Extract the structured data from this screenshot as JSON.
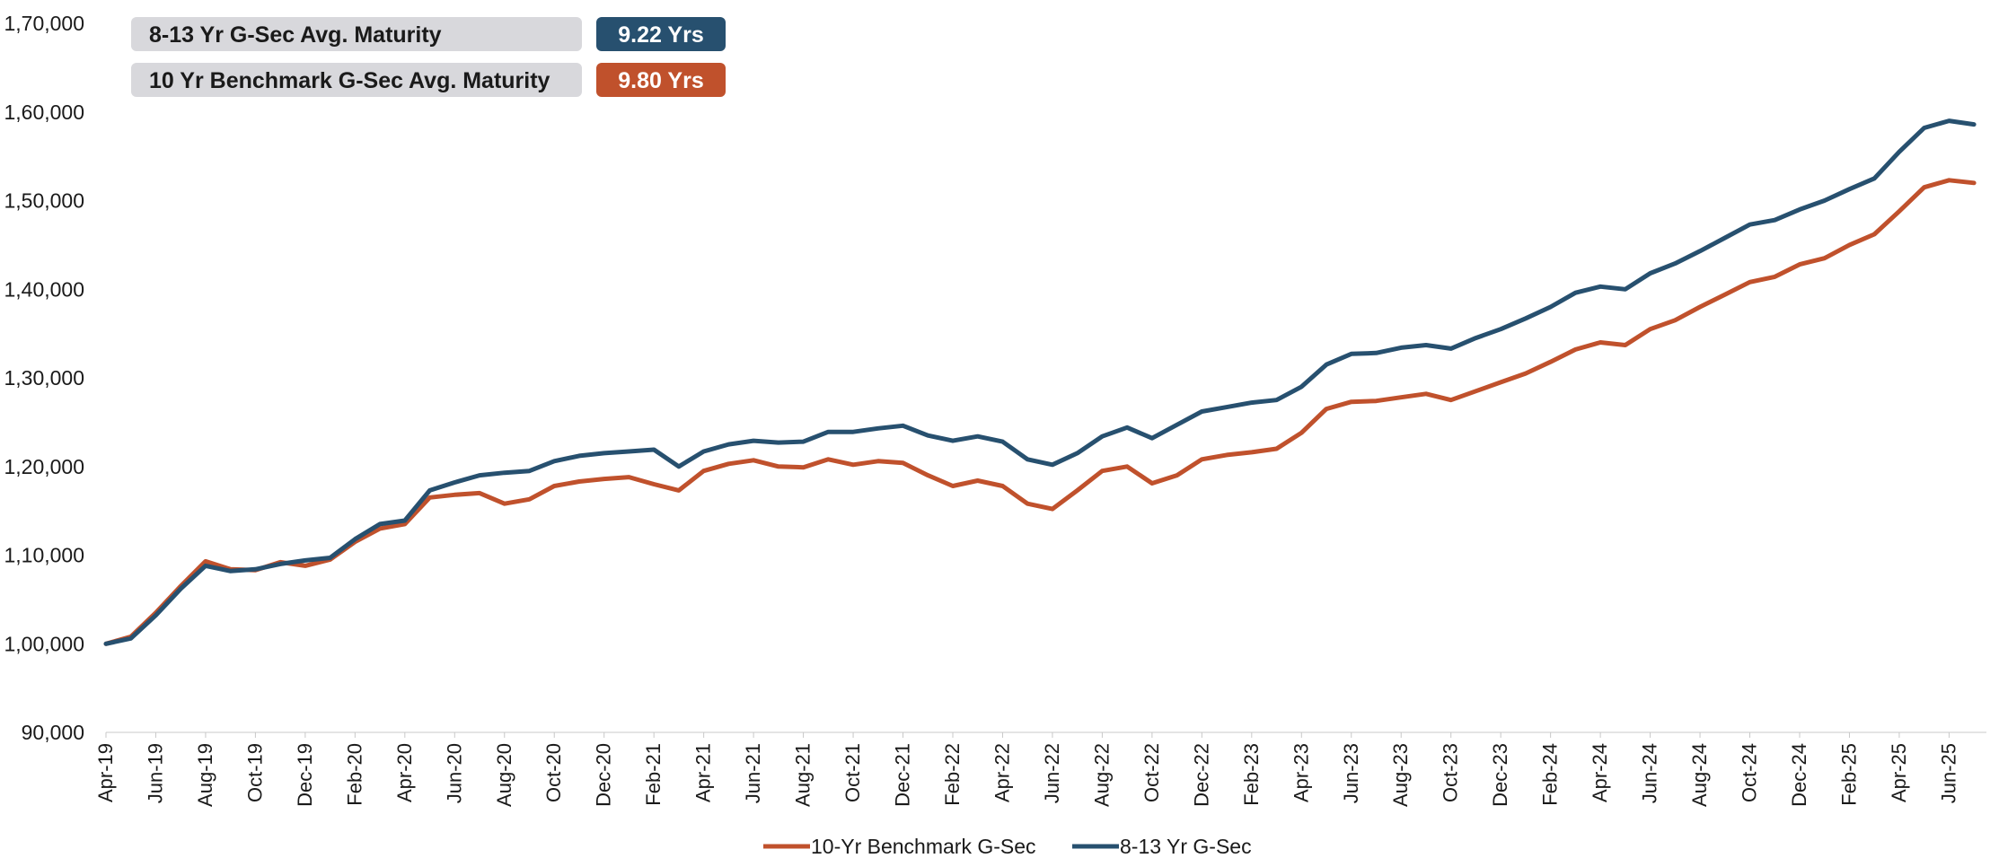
{
  "info_boxes": [
    {
      "label": "8-13 Yr G-Sec Avg. Maturity",
      "value": "9.22 Yrs",
      "color": "#27506f"
    },
    {
      "label": "10 Yr Benchmark G-Sec Avg. Maturity",
      "value": "9.80 Yrs",
      "color": "#c0512c"
    }
  ],
  "legend": [
    {
      "label": "10-Yr Benchmark G-Sec",
      "color": "#c0512c"
    },
    {
      "label": "8-13 Yr G-Sec",
      "color": "#27506f"
    }
  ],
  "chart_data": {
    "type": "line",
    "title": "",
    "xlabel": "",
    "ylabel": "",
    "ylim": [
      90000,
      170000
    ],
    "y_ticks": [
      "90,000",
      "1,00,000",
      "1,10,000",
      "1,20,000",
      "1,30,000",
      "1,40,000",
      "1,50,000",
      "1,60,000",
      "1,70,000"
    ],
    "x_tick_labels": [
      "Apr-19",
      "Jun-19",
      "Aug-19",
      "Oct-19",
      "Dec-19",
      "Feb-20",
      "Apr-20",
      "Jun-20",
      "Aug-20",
      "Oct-20",
      "Dec-20",
      "Feb-21",
      "Apr-21",
      "Jun-21",
      "Aug-21",
      "Oct-21",
      "Dec-21",
      "Feb-22",
      "Apr-22",
      "Jun-22",
      "Aug-22",
      "Oct-22",
      "Dec-22",
      "Feb-23",
      "Apr-23",
      "Jun-23",
      "Aug-23",
      "Oct-23",
      "Dec-23",
      "Feb-24",
      "Apr-24",
      "Jun-24",
      "Aug-24",
      "Oct-24",
      "Dec-24",
      "Feb-25",
      "Apr-25",
      "Jun-25"
    ],
    "x": [
      "2019-04",
      "2019-05",
      "2019-06",
      "2019-07",
      "2019-08",
      "2019-09",
      "2019-10",
      "2019-11",
      "2019-12",
      "2020-01",
      "2020-02",
      "2020-03",
      "2020-04",
      "2020-05",
      "2020-06",
      "2020-07",
      "2020-08",
      "2020-09",
      "2020-10",
      "2020-11",
      "2020-12",
      "2021-01",
      "2021-02",
      "2021-03",
      "2021-04",
      "2021-05",
      "2021-06",
      "2021-07",
      "2021-08",
      "2021-09",
      "2021-10",
      "2021-11",
      "2021-12",
      "2022-01",
      "2022-02",
      "2022-03",
      "2022-04",
      "2022-05",
      "2022-06",
      "2022-07",
      "2022-08",
      "2022-09",
      "2022-10",
      "2022-11",
      "2022-12",
      "2023-01",
      "2023-02",
      "2023-03",
      "2023-04",
      "2023-05",
      "2023-06",
      "2023-07",
      "2023-08",
      "2023-09",
      "2023-10",
      "2023-11",
      "2023-12",
      "2024-01",
      "2024-02",
      "2024-03",
      "2024-04",
      "2024-05",
      "2024-06",
      "2024-07",
      "2024-08",
      "2024-09",
      "2024-10",
      "2024-11",
      "2024-12",
      "2025-01",
      "2025-02",
      "2025-03",
      "2025-04",
      "2025-05",
      "2025-06",
      "2025-07"
    ],
    "series": [
      {
        "name": "10-Yr Benchmark G-Sec",
        "color": "#c0512c",
        "values": [
          100000,
          100800,
          103500,
          106500,
          109300,
          108400,
          108300,
          109200,
          108800,
          109500,
          111500,
          113000,
          113500,
          116500,
          116800,
          117000,
          115800,
          116300,
          117800,
          118300,
          118600,
          118800,
          118000,
          117300,
          119500,
          120300,
          120700,
          120000,
          119900,
          120800,
          120200,
          120600,
          120400,
          119000,
          117800,
          118400,
          117800,
          115800,
          115200,
          117300,
          119500,
          120000,
          118100,
          119000,
          120800,
          121300,
          121600,
          122000,
          123800,
          126500,
          127300,
          127400,
          127800,
          128200,
          127500,
          128500,
          129500,
          130500,
          131800,
          133200,
          134000,
          133700,
          135500,
          136500,
          138000,
          139400,
          140800,
          141400,
          142800,
          143500,
          145000,
          146200,
          148800,
          151500,
          152300,
          152000
        ]
      },
      {
        "name": "8-13 Yr G-Sec",
        "color": "#27506f",
        "values": [
          100000,
          100600,
          103200,
          106200,
          108800,
          108200,
          108400,
          109000,
          109400,
          109700,
          111800,
          113500,
          113900,
          117300,
          118200,
          119000,
          119300,
          119500,
          120600,
          121200,
          121500,
          121700,
          121900,
          120000,
          121700,
          122500,
          122900,
          122700,
          122800,
          123900,
          123900,
          124300,
          124600,
          123500,
          122900,
          123400,
          122800,
          120800,
          120200,
          121500,
          123400,
          124400,
          123200,
          124700,
          126200,
          126700,
          127200,
          127500,
          129000,
          131500,
          132700,
          132800,
          133400,
          133700,
          133300,
          134500,
          135500,
          136700,
          138000,
          139600,
          140300,
          140000,
          141800,
          142900,
          144300,
          145800,
          147300,
          147800,
          149000,
          150000,
          151300,
          152500,
          155500,
          158200,
          159000,
          158600
        ]
      }
    ]
  }
}
